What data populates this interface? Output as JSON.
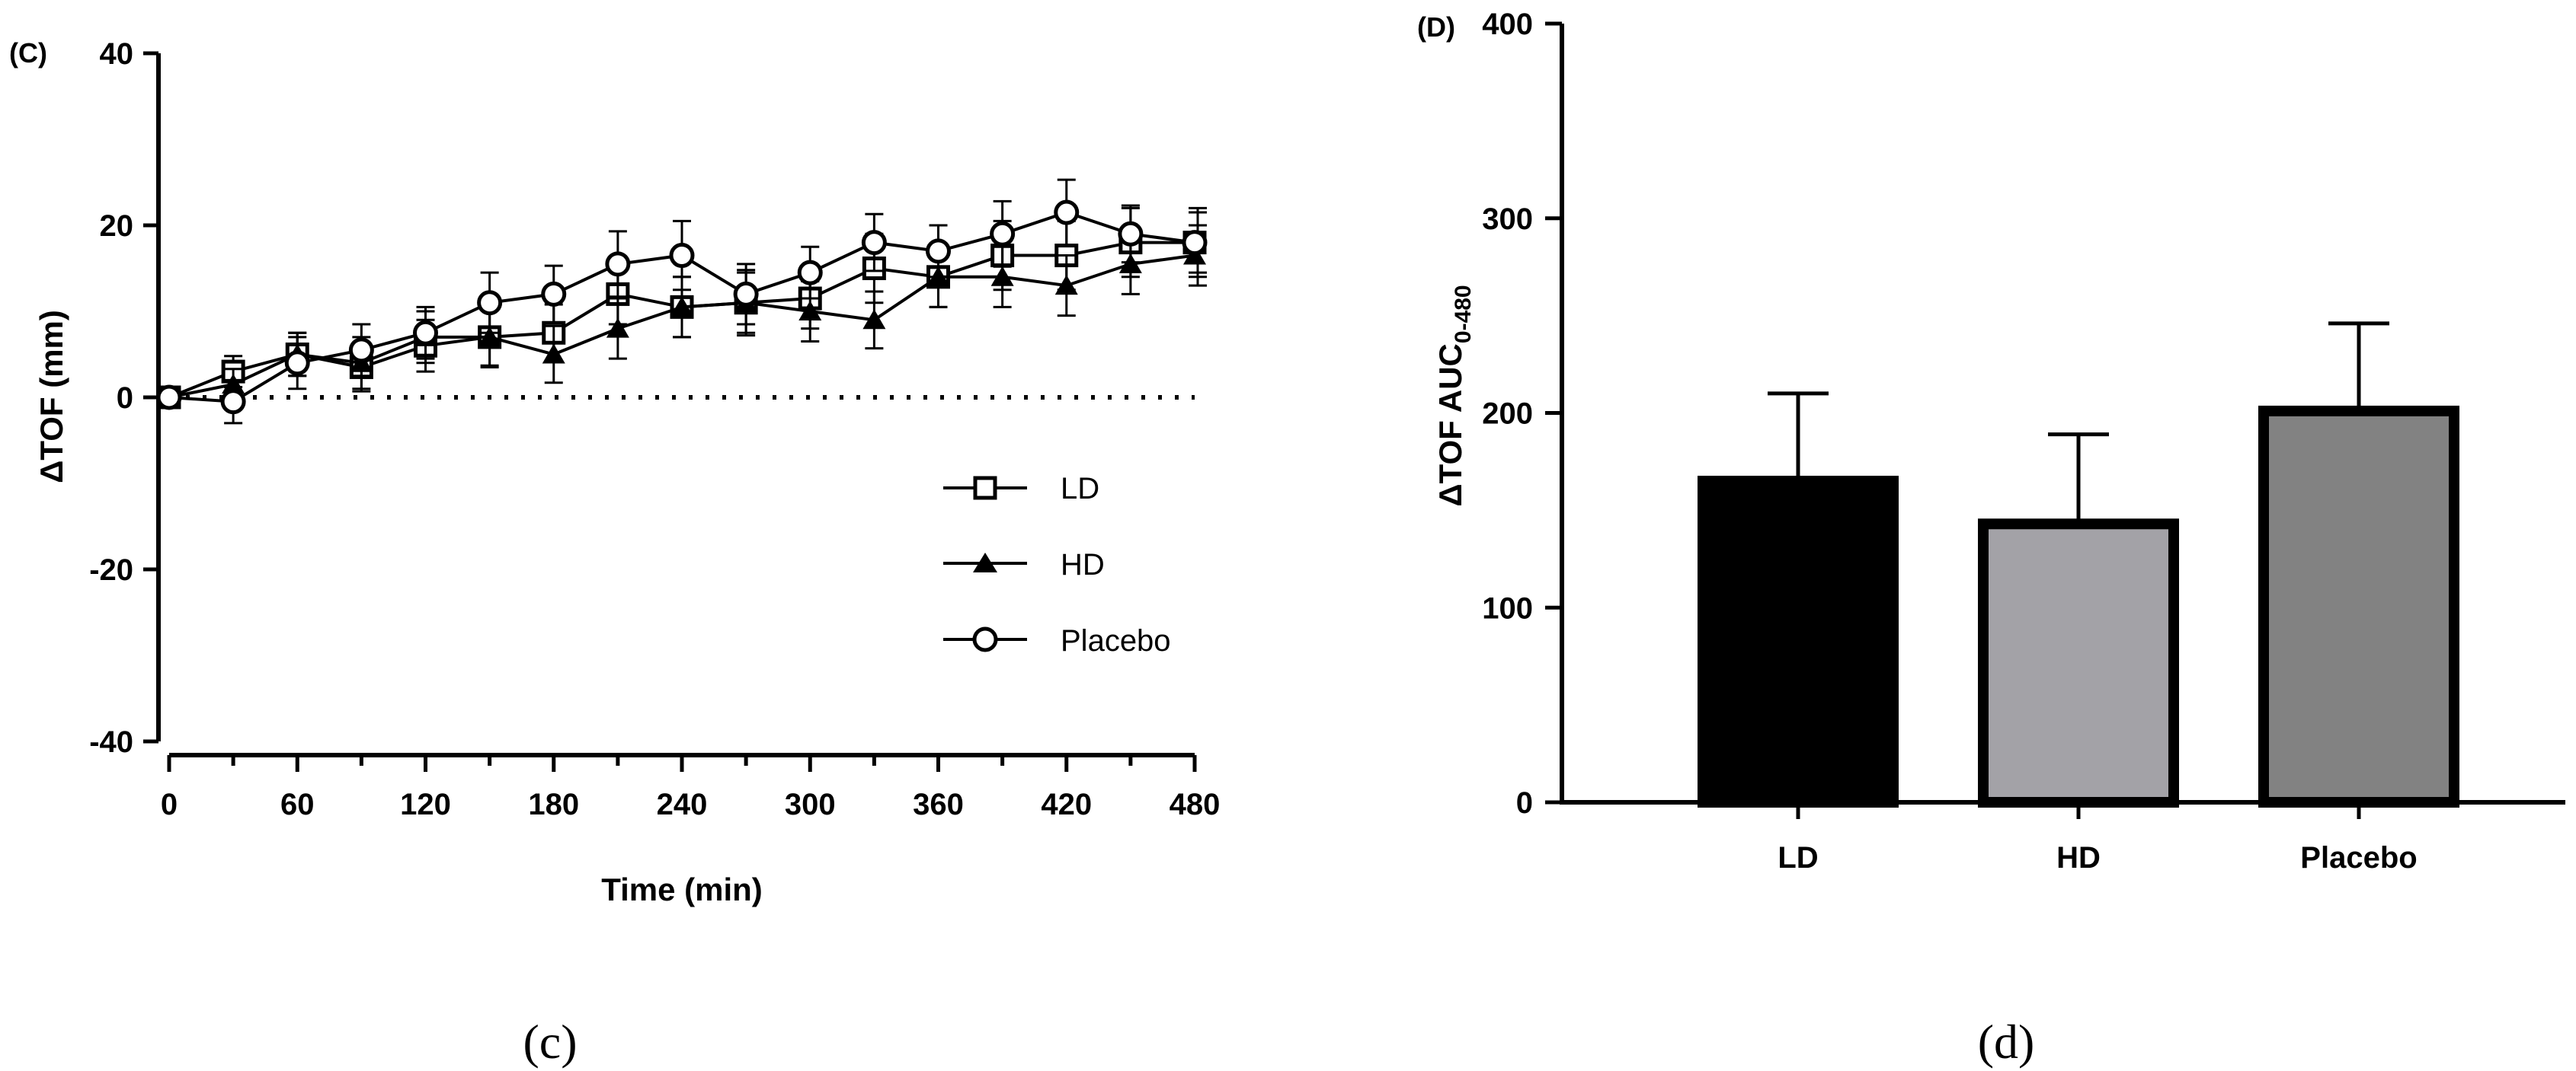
{
  "chart_data": [
    {
      "type": "line",
      "panel_label": "(C)",
      "caption": "(c)",
      "xlabel": "Time (min)",
      "ylabel": "ΔTOF (mm)",
      "xlim": [
        0,
        480
      ],
      "ylim": [
        -40,
        40
      ],
      "xticks": [
        "0",
        "60",
        "120",
        "180",
        "240",
        "300",
        "360",
        "420",
        "480"
      ],
      "yticks": [
        "40",
        "20",
        "0",
        "-20",
        "-40"
      ],
      "reference_line": 0,
      "legend": [
        "LD",
        "HD",
        "Placebo"
      ],
      "x": [
        0,
        30,
        60,
        90,
        120,
        150,
        180,
        210,
        240,
        270,
        300,
        330,
        360,
        390,
        420,
        450,
        480
      ],
      "series": [
        {
          "name": "LD",
          "marker": "square-open",
          "values": [
            0,
            3,
            5,
            3.5,
            6,
            7,
            7.5,
            12,
            10.5,
            11,
            11.5,
            15,
            14,
            16.5,
            16.5,
            18,
            18
          ],
          "errors": [
            0,
            1.8,
            2.5,
            2.8,
            3,
            3.5,
            3.3,
            3.5,
            3.5,
            3.8,
            3.5,
            4,
            3.5,
            4,
            4,
            4,
            4
          ]
        },
        {
          "name": "HD",
          "marker": "triangle-filled",
          "values": [
            0,
            1.5,
            5,
            4,
            7,
            7,
            5,
            8,
            10.5,
            11,
            10,
            9,
            14,
            14,
            13,
            15.5,
            16.5
          ],
          "errors": [
            0,
            1.8,
            2.5,
            3,
            3,
            3.3,
            3.3,
            3.5,
            3.5,
            3.5,
            3.5,
            3.3,
            3.5,
            3.5,
            3.5,
            3.5,
            3.5
          ]
        },
        {
          "name": "Placebo",
          "marker": "circle-open",
          "values": [
            0,
            -0.5,
            4,
            5.5,
            7.5,
            11,
            12,
            15.5,
            16.5,
            12,
            14.5,
            18,
            17,
            19,
            21.5,
            19,
            18
          ],
          "errors": [
            0,
            2.5,
            3,
            3,
            3,
            3.5,
            3.3,
            3.8,
            4,
            3.5,
            3,
            3.3,
            3,
            3.8,
            3.8,
            3.3,
            3.5
          ]
        }
      ]
    },
    {
      "type": "bar",
      "panel_label": "(D)",
      "caption": "(d)",
      "ylabel": "ΔTOF AUC",
      "ylabel_subscript": "0-480",
      "ylim": [
        0,
        400
      ],
      "yticks": [
        "400",
        "300",
        "200",
        "100",
        "0"
      ],
      "categories": [
        "LD",
        "HD",
        "Placebo"
      ],
      "values": [
        165,
        143,
        201
      ],
      "errors": [
        45,
        46,
        45
      ],
      "colors": [
        "#000000",
        "#a3a2a7",
        "#828282"
      ]
    }
  ]
}
